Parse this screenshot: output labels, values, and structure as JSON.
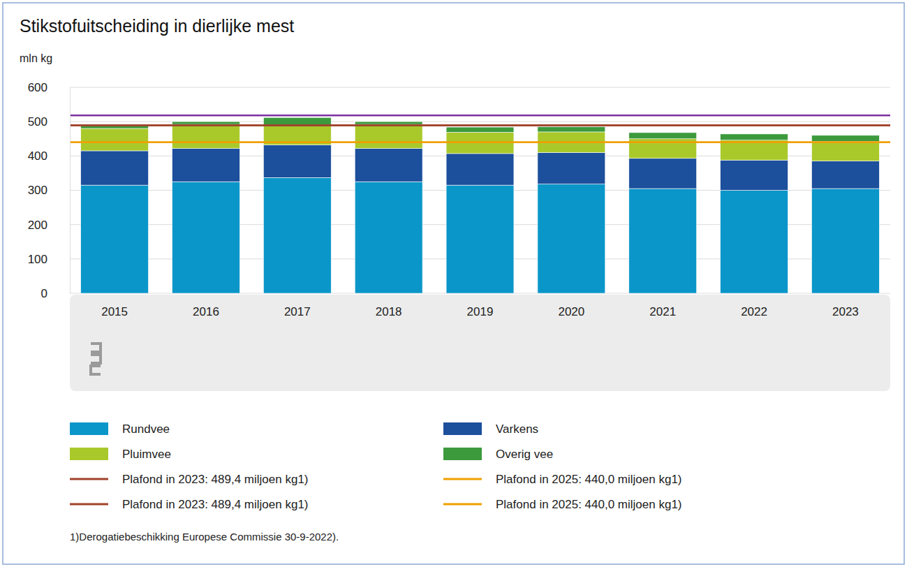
{
  "chart_data": {
    "type": "bar",
    "stacked": true,
    "title": "Stikstofuitscheiding in dierlijke mest",
    "y_label": "mln kg",
    "categories": [
      "2015",
      "2016",
      "2017",
      "2018",
      "2019",
      "2020",
      "2021",
      "2022",
      "2023"
    ],
    "series": [
      {
        "name": "Rundvee",
        "color": "#0a96c9",
        "values": [
          315,
          325,
          337,
          325,
          315,
          318,
          305,
          300,
          305
        ]
      },
      {
        "name": "Varkens",
        "color": "#1c4f9c",
        "values": [
          100,
          97,
          95,
          97,
          92,
          92,
          88,
          88,
          80
        ]
      },
      {
        "name": "Pluimvee",
        "color": "#a9c92b",
        "values": [
          65,
          70,
          58,
          70,
          62,
          60,
          57,
          58,
          57
        ]
      },
      {
        "name": "Overig vee",
        "color": "#3c9a3c",
        "values": [
          8,
          8,
          22,
          8,
          15,
          15,
          18,
          18,
          18
        ]
      }
    ],
    "reference_lines": [
      {
        "name": "Plafond in 2023: 489,4 miljoen kg1)",
        "color": "#a0432b",
        "value": 489.4
      },
      {
        "name": "Plafond in 2025: 440,0 miljoen kg1)",
        "color": "#f0a000",
        "value": 440.0
      },
      {
        "name": "Plafond in 2023: 489,4 miljoen kg1)",
        "color": "#a0432b",
        "value": 489.4
      },
      {
        "name": "Plafond in 2025: 440,0 miljoen kg1)",
        "color": "#f0a000",
        "value": 440.0
      },
      {
        "color": "#7d2fa3",
        "value": 518
      }
    ],
    "ylim": [
      0,
      600
    ],
    "yticks": [
      0,
      100,
      200,
      300,
      400,
      500,
      600
    ],
    "grid": true,
    "legend": "bottom",
    "footnote": "1)Derogatiebeschikking Europese Commissie 30-9-2022)."
  }
}
